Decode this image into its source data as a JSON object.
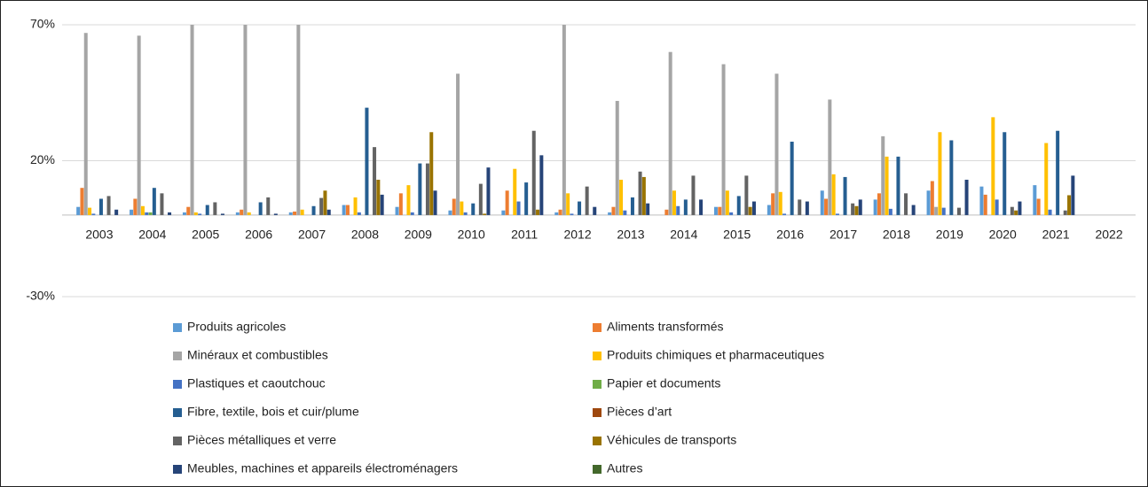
{
  "chart_data": {
    "type": "bar",
    "categories": [
      "2003",
      "2004",
      "2005",
      "2006",
      "2007",
      "2008",
      "2009",
      "2010",
      "2011",
      "2012",
      "2013",
      "2014",
      "2015",
      "2016",
      "2017",
      "2018",
      "2019",
      "2020",
      "2021",
      "2022"
    ],
    "ylim": [
      -30,
      70
    ],
    "yticks": [
      {
        "value": -30,
        "label": "-30%"
      },
      {
        "value": 20,
        "label": "20%"
      },
      {
        "value": 70,
        "label": "70%"
      }
    ],
    "grid": true,
    "legend": "bottom",
    "series": [
      {
        "name": "Produits agricoles",
        "color": "#5b9bd5",
        "values": [
          3,
          2,
          1,
          1,
          1,
          3.7,
          3,
          1.7,
          1.7,
          1,
          1,
          0,
          3,
          3.7,
          9,
          5.7,
          9,
          10.5,
          11,
          0
        ]
      },
      {
        "name": "Aliments transformés",
        "color": "#ed7d31",
        "values": [
          10,
          6,
          3,
          2,
          1.3,
          3.7,
          8,
          6,
          9,
          2,
          3,
          2,
          3,
          8,
          6,
          8,
          12.5,
          7.5,
          6,
          0
        ]
      },
      {
        "name": "Minéraux et combustibles",
        "color": "#a5a5a5",
        "values": [
          67,
          66,
          70,
          70,
          70,
          0,
          0,
          52,
          0,
          70,
          42,
          60,
          55.5,
          52,
          42.5,
          29,
          3,
          0,
          0,
          0
        ]
      },
      {
        "name": "Produits chimiques et pharmaceutiques",
        "color": "#ffc000",
        "values": [
          2.7,
          3.3,
          1,
          1,
          2,
          6.5,
          11,
          5,
          17,
          8,
          13,
          9,
          9,
          8.5,
          15,
          21.5,
          30.5,
          36,
          26.5,
          0
        ]
      },
      {
        "name": "Plastiques et caoutchouc",
        "color": "#4472c4",
        "values": [
          0.5,
          1,
          0.5,
          0,
          0,
          1,
          1,
          1,
          5,
          0.5,
          1.7,
          3.3,
          1,
          0.5,
          0.5,
          2.3,
          2.7,
          5.7,
          2,
          0
        ]
      },
      {
        "name": "Papier et documents",
        "color": "#70ad47",
        "values": [
          0,
          1,
          0,
          0,
          0,
          0,
          0,
          0,
          0,
          0,
          0,
          0,
          0,
          0,
          0,
          0,
          0,
          0,
          0,
          0
        ]
      },
      {
        "name": "Fibre, textile, bois et cuir/plume",
        "color": "#255e91",
        "values": [
          6,
          10,
          3.7,
          4.7,
          3.3,
          39.5,
          19,
          4.3,
          12,
          5,
          6.5,
          5.7,
          7,
          27,
          14,
          21.5,
          27.5,
          30.5,
          31,
          0
        ]
      },
      {
        "name": "Pièces d’art",
        "color": "#9e480e",
        "values": [
          0,
          0,
          0,
          0,
          0,
          0,
          0,
          0,
          0,
          0,
          0,
          0,
          0,
          0,
          0,
          0,
          0,
          0,
          0,
          0
        ]
      },
      {
        "name": "Pièces métalliques et verre",
        "color": "#636363",
        "values": [
          7,
          8,
          4.7,
          6.5,
          6.3,
          25,
          19,
          11.5,
          31,
          10.5,
          16,
          14.5,
          14.5,
          5.7,
          4.3,
          8,
          2.7,
          3,
          1.7,
          0
        ]
      },
      {
        "name": "Véhicules de transports",
        "color": "#997300",
        "values": [
          0,
          0,
          0,
          0,
          9,
          13,
          30.5,
          0.5,
          2,
          0,
          14,
          0,
          3,
          0,
          3.3,
          0,
          0,
          1.7,
          7.3,
          0
        ]
      },
      {
        "name": "Meubles, machines et appareils électroménagers",
        "color": "#264478",
        "values": [
          2,
          1,
          0.5,
          0.5,
          2,
          7.5,
          9,
          17.5,
          22,
          3,
          4.3,
          5.7,
          5,
          5,
          5.7,
          3.7,
          13,
          5,
          14.5,
          0
        ]
      },
      {
        "name": "Autres",
        "color": "#43682b",
        "values": [
          0,
          0,
          0,
          0,
          0,
          0,
          0,
          0,
          0,
          0,
          0,
          0,
          0,
          0,
          0,
          0,
          0,
          0,
          0,
          0
        ]
      }
    ]
  }
}
